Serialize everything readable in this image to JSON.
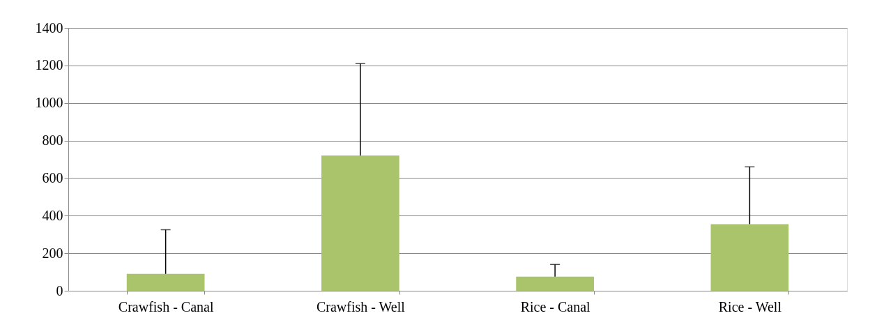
{
  "chart_data": {
    "type": "bar",
    "categories": [
      "Crawfish - Canal",
      "Crawfish - Well",
      "Rice - Canal",
      "Rice - Well"
    ],
    "values": [
      90,
      720,
      75,
      355
    ],
    "errors": [
      [
        90,
        325
      ],
      [
        720,
        1210
      ],
      [
        75,
        140
      ],
      [
        355,
        660
      ]
    ],
    "color": "#a9c46b",
    "ylim": [
      0,
      1400
    ],
    "yticks": [
      0,
      200,
      400,
      600,
      800,
      1000,
      1200,
      1400
    ],
    "grid": "y"
  }
}
